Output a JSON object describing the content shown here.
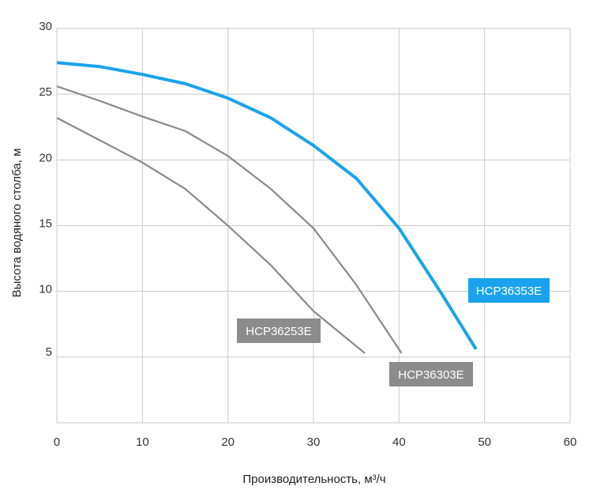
{
  "chart_data": {
    "type": "line",
    "xlabel": "Производительность, м³/ч",
    "ylabel": "Высота водяного столба, м",
    "xlim": [
      0,
      60
    ],
    "ylim": [
      0,
      30
    ],
    "x_ticks": [
      "0",
      "10",
      "20",
      "30",
      "40",
      "50",
      "60"
    ],
    "y_ticks": [
      "5",
      "10",
      "15",
      "20",
      "25",
      "30"
    ],
    "grid": true,
    "series": [
      {
        "name": "HCP36253E",
        "color": "#8a8a8a",
        "label_color": "#8c8c8c",
        "x": [
          0,
          5,
          10,
          15,
          20,
          25,
          30,
          36
        ],
        "y": [
          23.2,
          21.5,
          19.8,
          17.8,
          15.0,
          12.0,
          8.5,
          5.3
        ]
      },
      {
        "name": "HCP36303E",
        "color": "#8a8a8a",
        "label_color": "#8c8c8c",
        "x": [
          0,
          5,
          10,
          15,
          20,
          25,
          30,
          35,
          40.3
        ],
        "y": [
          25.6,
          24.5,
          23.3,
          22.2,
          20.3,
          17.8,
          14.8,
          10.5,
          5.3
        ]
      },
      {
        "name": "HCP36353E",
        "color": "#1aa3ec",
        "label_color": "#1aa3ec",
        "x": [
          0,
          5,
          10,
          15,
          20,
          25,
          30,
          35,
          40,
          45,
          49
        ],
        "y": [
          27.4,
          27.1,
          26.5,
          25.8,
          24.7,
          23.2,
          21.1,
          18.6,
          14.8,
          9.8,
          5.6
        ]
      }
    ]
  }
}
